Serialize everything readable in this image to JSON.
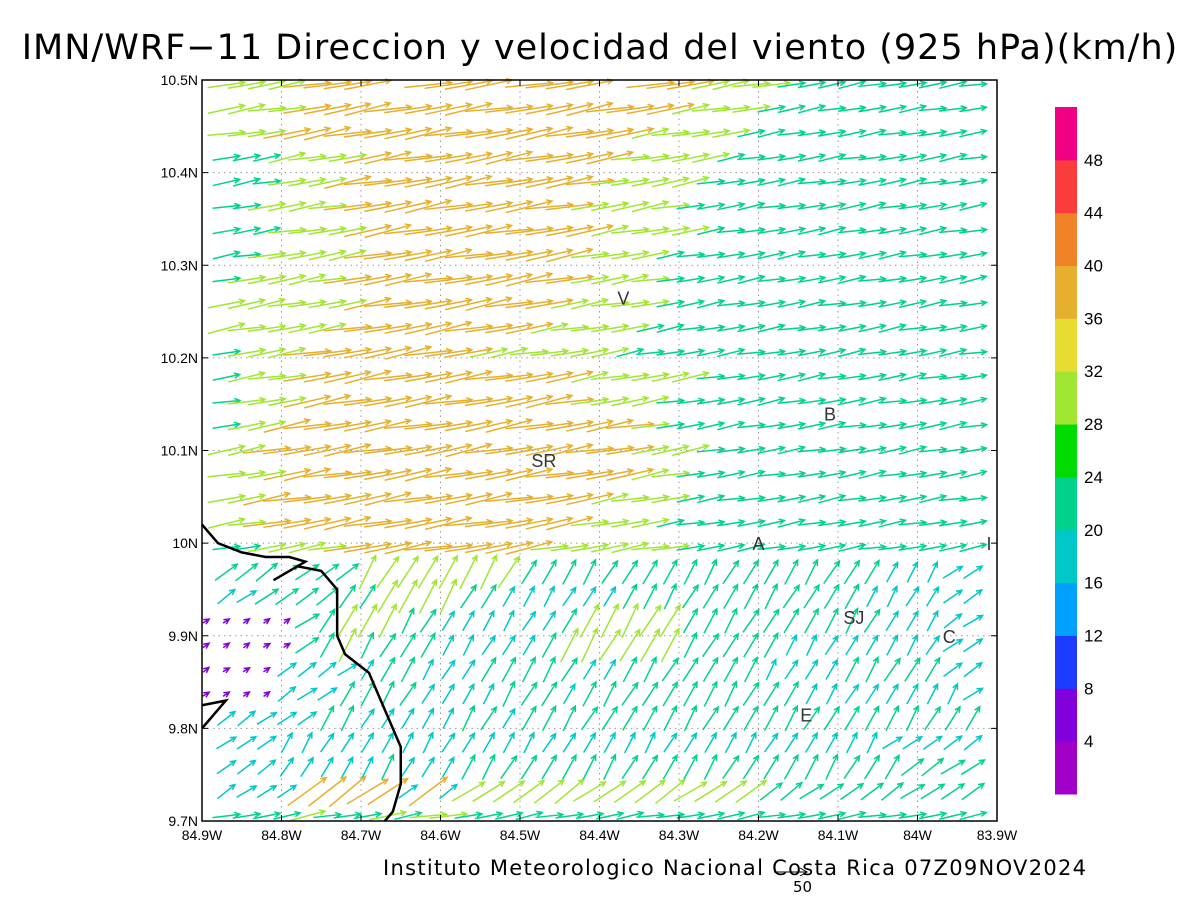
{
  "title": "IMN/WRF−11 Direccion y velocidad del viento (925 hPa)(km/h)",
  "credit": "Instituto Meteorologico Nacional Costa Rica 07Z09NOV2024",
  "map": {
    "lon_range": [
      -84.9,
      -83.9
    ],
    "lat_range": [
      9.7,
      10.5
    ],
    "lon_ticks": [
      {
        "v": -84.9,
        "label": "84.9W"
      },
      {
        "v": -84.8,
        "label": "84.8W"
      },
      {
        "v": -84.7,
        "label": "84.7W"
      },
      {
        "v": -84.6,
        "label": "84.6W"
      },
      {
        "v": -84.5,
        "label": "84.5W"
      },
      {
        "v": -84.4,
        "label": "84.4W"
      },
      {
        "v": -84.3,
        "label": "84.3W"
      },
      {
        "v": -84.2,
        "label": "84.2W"
      },
      {
        "v": -84.1,
        "label": "84.1W"
      },
      {
        "v": -84.0,
        "label": "84W"
      },
      {
        "v": -83.9,
        "label": "83.9W"
      }
    ],
    "lat_ticks": [
      {
        "v": 9.7,
        "label": "9.7N"
      },
      {
        "v": 9.8,
        "label": "9.8N"
      },
      {
        "v": 9.9,
        "label": "9.9N"
      },
      {
        "v": 10.0,
        "label": "10N"
      },
      {
        "v": 10.1,
        "label": "10.1N"
      },
      {
        "v": 10.2,
        "label": "10.2N"
      },
      {
        "v": 10.3,
        "label": "10.3N"
      },
      {
        "v": 10.4,
        "label": "10.4N"
      },
      {
        "v": 10.5,
        "label": "10.5N"
      }
    ],
    "grid": true,
    "city_labels": [
      {
        "text": "V",
        "lon": -84.37,
        "lat": 10.265
      },
      {
        "text": "B",
        "lon": -84.11,
        "lat": 10.14
      },
      {
        "text": "SR",
        "lon": -84.47,
        "lat": 10.09
      },
      {
        "text": "A",
        "lon": -84.2,
        "lat": 10.0
      },
      {
        "text": "I",
        "lon": -83.91,
        "lat": 10.0
      },
      {
        "text": "SJ",
        "lon": -84.08,
        "lat": 9.92
      },
      {
        "text": "C",
        "lon": -83.96,
        "lat": 9.9
      },
      {
        "text": "E",
        "lon": -84.14,
        "lat": 9.815
      }
    ],
    "coastline": [
      [
        -84.9,
        10.02
      ],
      [
        -84.88,
        10.0
      ],
      [
        -84.85,
        9.99
      ],
      [
        -84.82,
        9.985
      ],
      [
        -84.79,
        9.985
      ],
      [
        -84.77,
        9.98
      ],
      [
        -84.81,
        9.96
      ],
      [
        -84.78,
        9.975
      ],
      [
        -84.75,
        9.97
      ],
      [
        -84.73,
        9.95
      ],
      [
        -84.73,
        9.9
      ],
      [
        -84.72,
        9.88
      ],
      [
        -84.69,
        9.86
      ],
      [
        -84.68,
        9.84
      ],
      [
        -84.67,
        9.82
      ],
      [
        -84.66,
        9.8
      ],
      [
        -84.65,
        9.78
      ],
      [
        -84.65,
        9.74
      ],
      [
        -84.66,
        9.71
      ],
      [
        -84.67,
        9.7
      ]
    ],
    "coastline_b": [
      [
        -84.9,
        9.8
      ],
      [
        -84.87,
        9.83
      ],
      [
        -84.9,
        9.825
      ]
    ]
  },
  "colorbar": {
    "colors": [
      "#a000c8",
      "#8200dc",
      "#1e3cff",
      "#00a0ff",
      "#00c8c8",
      "#00d28c",
      "#00dc00",
      "#a0e632",
      "#e6dc32",
      "#e6af2d",
      "#f08228",
      "#fa3c3c",
      "#f00082"
    ],
    "labels": [
      "4",
      "8",
      "12",
      "16",
      "20",
      "24",
      "28",
      "32",
      "36",
      "40",
      "44",
      "48"
    ]
  },
  "scale": {
    "label": "50",
    "value": 50
  },
  "wind": {
    "rows": [
      "BBBBBCBBBCBCCBBBBBBBBBBBBBBBBBBBBBBBBBBB",
      "AAAAADDDDDADACCCCCCCCCCCCCCCBBBBBBBBBBBB",
      "AAAAAAAAABAAABBBBBBBBBBBBBBBBBBBBBBBBBBB",
      "AAAAAAAAAAAAAAAAAAAAAAAAAAAAAAAAAAAAAAAA",
      "AAAAAABBAAAAABBABBBBBBBBBBBBBBBBBBBBBBBB",
      "9999AAABBBBAAAABBBABBBBBBBBBBBAAAAAAAAAA",
      "9999AAAAABBAAABBBBBAABBBBBBBAAAABBBBBAAA",
      "99999BBCBBBBAAAAABCCCCCCBBBBBAAAAAAAAAAA",
      "99999BBCCCBBAAAAAABCCCCCBBBBBBBBBBAAAAAA",
      "AAABBBBBBCCCCBBAAAAAABBBBBBBBBBBBAAAAAAA",
      "ABBBBBBBCCCCCCCCBBBBBBBBBBBBBBBBBBAAAAAA",
      "BBBCCCCDDDDDDDDDDCCCCCCCBBBBBBBBBBBBBBBB",
      "CCCDDDDDDDDDDDDDDDDCCCCBBBBBBBBBBBBBBBBB",
      "CCCDDDDDDDDDDDDDDDDDCCCCBBBBBBBBBBBBBBBB",
      "CCCCDDDDDDDDDDDDDDDDDDCCBBBBBBBBBBBBBBBB",
      "CCCDDDDDDDDDDDDDDDDDDDCCCBBBBBBBBBBBBBBB",
      "BBCCDDDDDDDDDDDDDDDDDDCBBBBBBBBBBBBBBBBB",
      "BBCCCDDDDDDDDDDDDDDCCCCBBBBBBBBBBBBBBBBB",
      "BBCCCDDDDDDDDDDDDDDCCCCCCBBBBBBBBBBBBBBB",
      "BBCCCDDDDDDDDDCCCCCCCBBBBBBBBBBBBBBBBBBB",
      "BCCCCCCDDDDDDDDDDCCCCCBBBBBBBBBBBBBBBBBB",
      "BCCCCCCCDDDDDDDDDDCCCCCBBBBBBBBBBBBBBBBB",
      "BBCCCCCDDDDDDDDDDDDCCCCBBBBBBBBBBBBBBBBB",
      "BBBCCCCCDDDDDDDDDDDCCCCBBBBBBBBBBBBBBBBB",
      "BBBBCCCCDDDDDDDDDDDDCCCCCBBBBBBBBBBBBBBB",
      "BBBCCCCDDDDDDDDDDDDCCCCCBBBBBBBBBBBBBBBB",
      "BBBBCCCDDDDDDDDDDDDDCCCCCBBBBBBBBBBBBBBB",
      "BBBBCCCCDDDDDDDDDDDDDCCCCCBBBBBBBBBBBBBB",
      "CCCCDDDDDDDDDDDDDDDDDDCCCCCBBBBBBBBBBBBB",
      "CCCCCDDDDDDDDDDDDDDDDDDDCCCCBBBBBBBBBBBB",
      "CCCCCDDDDDDDDDDDDDDDDDDDDCCCCBBBBBBBBBBB"
    ],
    "directions": [
      "777777777777777777777777777777777777777777",
      "666666666666666666666666666666666666666666",
      "666655555555555555555555555555555556666666",
      "666655555555555555555555555555555566666666",
      "666666555555555555555555555555555555555666",
      "666666655555555555555555555555555555556666",
      "666666665555555555555555555555555555566666",
      "666666555555555555555555555555555555566666",
      "666666555555555555555555555555555555566666",
      "666666655555555555555555555555555555566666",
      "666666665555555555555555555555555555566666",
      "777777777777777777777777777777777777777777",
      "777777777777777777777777777777777777777777",
      "777777777777777777777777777777777777777777",
      "777777777777777777777777777777777777777777",
      "777777777777777777777777777777777777777777",
      "777777777777777777777777777777777777777777",
      "777777777777777777777777777777777777777777",
      "777777777777777777777777777777777777777777",
      "777777777777777777777777777777777777777777",
      "777777777777777777777777777777777777777777",
      "777777777777777777777777777777777777777777",
      "777777777777777777777777777777777777777777",
      "777777777777777777777777777777777777777777",
      "777777777777777777777777777777777777777777",
      "777777777777777777777777777777777777777777",
      "777777777777777777777777777777777777777777",
      "777777777777777777777777777777777777777777",
      "777777777777777777777777777777777777777777",
      "777777777777777777777777777777777777777777",
      "777777777777777777777777777777777777777777"
    ],
    "speed_key": "0=0,1=4,2=8,3=12,4=16,5=20,6=24,7=28,8=32,9=6,A=18,B=22,C=30,D=38"
  }
}
